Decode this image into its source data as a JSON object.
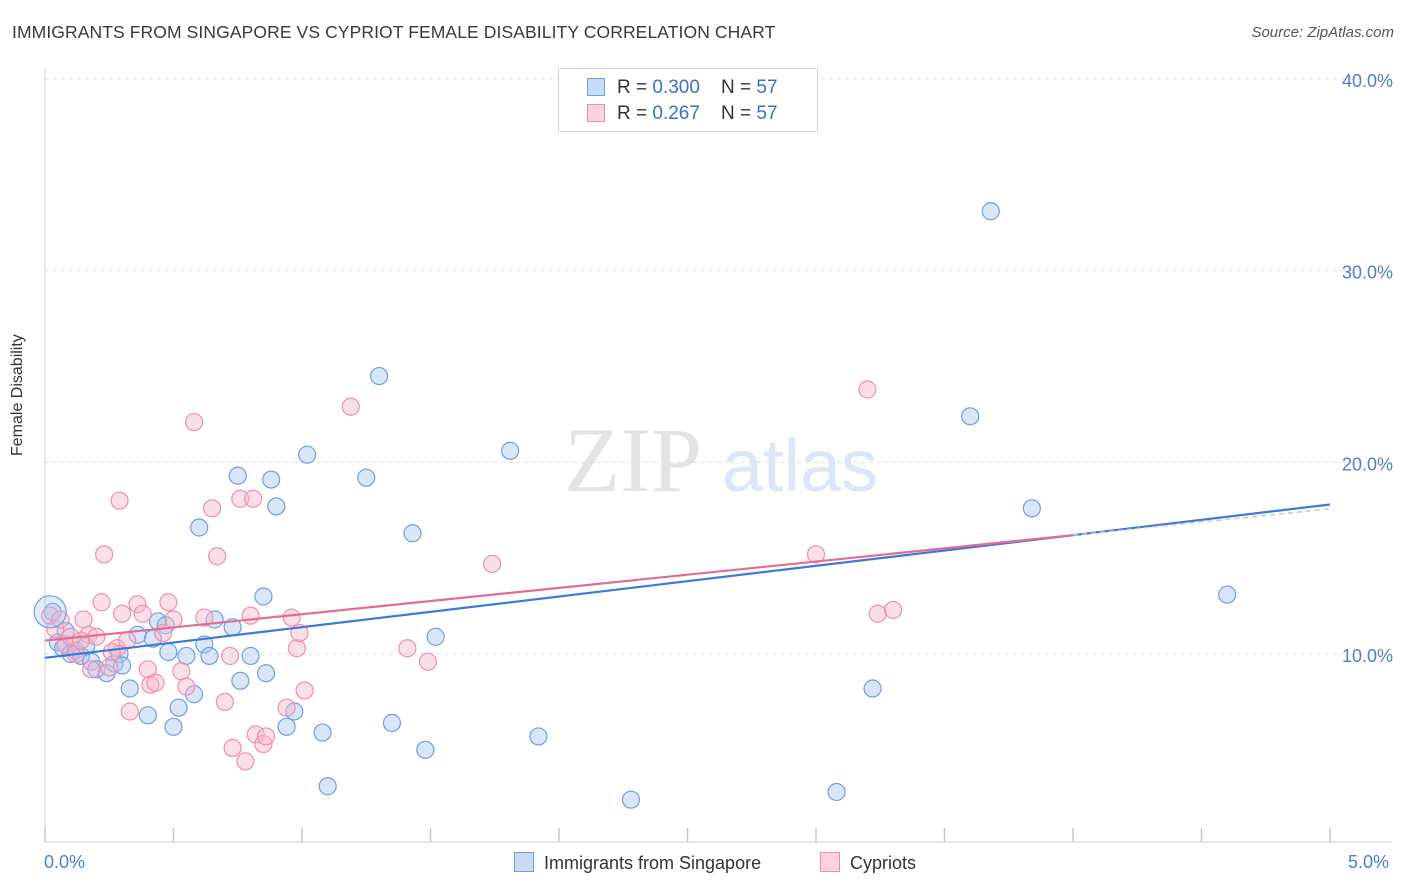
{
  "header": {
    "title": "IMMIGRANTS FROM SINGAPORE VS CYPRIOT FEMALE DISABILITY CORRELATION CHART",
    "source": "Source: ZipAtlas.com"
  },
  "watermark": {
    "zip": "ZIP",
    "atlas": "atlas"
  },
  "legend": {
    "rows": [
      {
        "r_label": "R = ",
        "r_value": "0.300",
        "n_label": "N = ",
        "n_value": "57",
        "color": "#a9c7f0",
        "border": "#6f9fe0"
      },
      {
        "r_label": "R = ",
        "r_value": " 0.267",
        "n_label": "N = ",
        "n_value": "57",
        "color": "#f7b8cb",
        "border": "#ef8fae"
      }
    ]
  },
  "bottom_legend": {
    "series1": "Immigrants from Singapore",
    "series2": "Cypriots"
  },
  "chart_data": {
    "type": "scatter",
    "title": "IMMIGRANTS FROM SINGAPORE VS CYPRIOT FEMALE DISABILITY CORRELATION CHART",
    "xlabel": "",
    "ylabel": "Female Disability",
    "xlim": [
      0,
      5
    ],
    "ylim": [
      0,
      42
    ],
    "x_tick_labels": [
      "0.0%",
      "5.0%"
    ],
    "y_ticks": [
      10,
      20,
      30,
      40
    ],
    "y_tick_labels": [
      "10.0%",
      "20.0%",
      "30.0%",
      "40.0%"
    ],
    "grid": true,
    "series": [
      {
        "name": "Immigrants from Singapore",
        "color": "#6f9fe0",
        "fill": "#a9c7f0",
        "trend": {
          "x0": 0,
          "y0": 9.8,
          "x1": 5,
          "y1": 17.8
        },
        "points": [
          [
            0.03,
            12.2
          ],
          [
            0.05,
            10.6
          ],
          [
            0.07,
            10.3
          ],
          [
            0.1,
            10.0
          ],
          [
            0.12,
            10.2
          ],
          [
            0.14,
            9.9
          ],
          [
            0.18,
            9.6
          ],
          [
            0.2,
            9.2
          ],
          [
            0.24,
            9.0
          ],
          [
            0.27,
            9.5
          ],
          [
            0.29,
            10.0
          ],
          [
            0.33,
            8.2
          ],
          [
            0.36,
            11.0
          ],
          [
            0.4,
            6.8
          ],
          [
            0.42,
            10.8
          ],
          [
            0.44,
            11.7
          ],
          [
            0.48,
            10.1
          ],
          [
            0.5,
            6.2
          ],
          [
            0.52,
            7.2
          ],
          [
            0.55,
            9.9
          ],
          [
            0.58,
            7.9
          ],
          [
            0.6,
            16.6
          ],
          [
            0.62,
            10.5
          ],
          [
            0.66,
            11.8
          ],
          [
            0.73,
            11.4
          ],
          [
            0.76,
            8.6
          ],
          [
            0.75,
            19.3
          ],
          [
            0.8,
            9.9
          ],
          [
            0.85,
            13.0
          ],
          [
            0.86,
            9.0
          ],
          [
            0.88,
            19.1
          ],
          [
            0.9,
            17.7
          ],
          [
            0.94,
            6.2
          ],
          [
            0.97,
            7.0
          ],
          [
            1.02,
            20.4
          ],
          [
            1.08,
            5.9
          ],
          [
            1.1,
            3.1
          ],
          [
            1.25,
            19.2
          ],
          [
            1.3,
            24.5
          ],
          [
            1.35,
            6.4
          ],
          [
            1.43,
            16.3
          ],
          [
            1.48,
            5.0
          ],
          [
            1.52,
            10.9
          ],
          [
            1.81,
            20.6
          ],
          [
            1.92,
            5.7
          ],
          [
            2.28,
            2.4
          ],
          [
            3.08,
            2.8
          ],
          [
            3.22,
            8.2
          ],
          [
            3.6,
            22.4
          ],
          [
            3.68,
            33.1
          ],
          [
            3.84,
            17.6
          ],
          [
            4.6,
            13.1
          ],
          [
            0.08,
            11.2
          ],
          [
            0.16,
            10.4
          ],
          [
            0.3,
            9.4
          ],
          [
            0.64,
            9.9
          ],
          [
            0.47,
            11.5
          ]
        ]
      },
      {
        "name": "Cypriots",
        "color": "#ef8fae",
        "fill": "#f7b8cb",
        "trend": {
          "x0": 0,
          "y0": 10.7,
          "x1": 4.0,
          "y1": 16.2
        },
        "points": [
          [
            0.02,
            12.0
          ],
          [
            0.04,
            11.3
          ],
          [
            0.06,
            11.8
          ],
          [
            0.08,
            10.5
          ],
          [
            0.1,
            10.9
          ],
          [
            0.12,
            10.0
          ],
          [
            0.15,
            11.8
          ],
          [
            0.17,
            11.0
          ],
          [
            0.18,
            9.2
          ],
          [
            0.2,
            10.9
          ],
          [
            0.22,
            12.7
          ],
          [
            0.23,
            15.2
          ],
          [
            0.25,
            9.3
          ],
          [
            0.28,
            10.3
          ],
          [
            0.29,
            18.0
          ],
          [
            0.3,
            12.1
          ],
          [
            0.32,
            10.7
          ],
          [
            0.33,
            7.0
          ],
          [
            0.36,
            12.6
          ],
          [
            0.38,
            12.1
          ],
          [
            0.4,
            9.2
          ],
          [
            0.41,
            8.4
          ],
          [
            0.43,
            8.5
          ],
          [
            0.46,
            11.1
          ],
          [
            0.48,
            12.7
          ],
          [
            0.5,
            11.8
          ],
          [
            0.53,
            9.1
          ],
          [
            0.58,
            22.1
          ],
          [
            0.62,
            11.9
          ],
          [
            0.65,
            17.6
          ],
          [
            0.67,
            15.1
          ],
          [
            0.7,
            7.5
          ],
          [
            0.72,
            9.9
          ],
          [
            0.73,
            5.1
          ],
          [
            0.76,
            18.1
          ],
          [
            0.78,
            4.4
          ],
          [
            0.8,
            12.0
          ],
          [
            0.81,
            18.1
          ],
          [
            0.82,
            5.8
          ],
          [
            0.85,
            5.3
          ],
          [
            0.86,
            5.7
          ],
          [
            0.94,
            7.2
          ],
          [
            0.96,
            11.9
          ],
          [
            0.98,
            10.3
          ],
          [
            0.99,
            11.1
          ],
          [
            1.01,
            8.1
          ],
          [
            1.19,
            22.9
          ],
          [
            1.41,
            10.3
          ],
          [
            1.49,
            9.6
          ],
          [
            1.74,
            14.7
          ],
          [
            3.0,
            15.2
          ],
          [
            3.2,
            23.8
          ],
          [
            3.24,
            12.1
          ],
          [
            3.3,
            12.3
          ],
          [
            0.14,
            10.7
          ],
          [
            0.26,
            10.1
          ],
          [
            0.55,
            8.3
          ]
        ]
      }
    ]
  }
}
